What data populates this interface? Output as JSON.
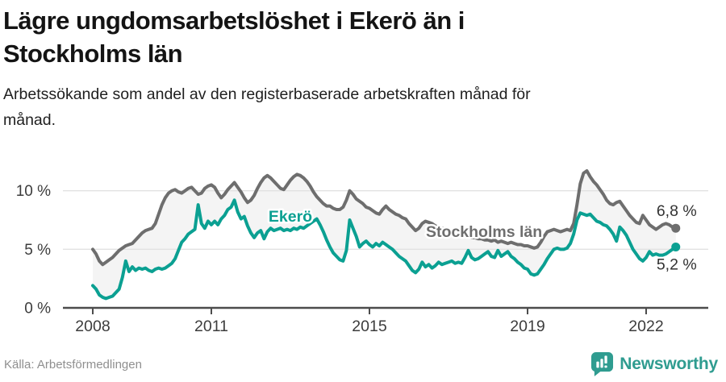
{
  "header": {
    "title_lines": [
      "Lägre ungdomsarbetslöshet i Ekerö än i",
      "Stockholms län"
    ],
    "subtitle_lines": [
      "Arbetssökande som andel av den registerbaserade arbetskraften månad för",
      "månad."
    ]
  },
  "footer": {
    "source": "Källa: Arbetsförmedlingen",
    "brand": "Newsworthy"
  },
  "colors": {
    "accent_teal": "#0ba092",
    "line_gray": "#6e6e6e",
    "axis": "#4c4c4c",
    "tick_label": "#3c3c3c",
    "gridline": "#e2e2e2",
    "fill_between": "#f4f4f4",
    "end_label_text": "#333333"
  },
  "chart_data": {
    "type": "line",
    "x_unit": "month",
    "x_start": "2008-01",
    "x_end": "2022-10",
    "x_ticks": [
      2008,
      2011,
      2015,
      2019,
      2022
    ],
    "y_ticks": [
      {
        "value": 0,
        "label": "0 %"
      },
      {
        "value": 5,
        "label": "5 %"
      },
      {
        "value": 10,
        "label": "10 %"
      }
    ],
    "ylim": [
      0,
      12.3
    ],
    "grid": "horizontal",
    "legend": "inline-labels",
    "series": [
      {
        "name": "Stockholms län",
        "slug": "stockholms-lan",
        "color": "#6e6e6e",
        "end_label": "6,8 %",
        "end_value": 6.8,
        "values": [
          5.0,
          4.6,
          4.0,
          3.7,
          3.9,
          4.1,
          4.3,
          4.6,
          4.9,
          5.1,
          5.3,
          5.4,
          5.5,
          5.8,
          6.1,
          6.4,
          6.6,
          6.7,
          6.8,
          7.2,
          8.0,
          8.8,
          9.4,
          9.8,
          10.0,
          10.1,
          9.9,
          9.8,
          10.0,
          10.2,
          10.3,
          10.0,
          9.7,
          9.8,
          10.2,
          10.4,
          10.5,
          10.3,
          9.8,
          9.4,
          9.7,
          10.1,
          10.4,
          10.7,
          10.3,
          9.9,
          9.4,
          9.0,
          9.2,
          9.6,
          10.2,
          10.7,
          11.1,
          11.3,
          11.1,
          10.8,
          10.5,
          10.2,
          10.1,
          10.5,
          10.9,
          11.2,
          11.4,
          11.3,
          11.1,
          10.8,
          10.4,
          9.9,
          9.5,
          9.2,
          8.9,
          8.7,
          8.7,
          8.5,
          8.4,
          8.4,
          8.6,
          9.2,
          10.0,
          9.7,
          9.3,
          9.1,
          8.9,
          8.6,
          8.5,
          8.3,
          8.1,
          8.0,
          8.4,
          8.7,
          8.4,
          8.2,
          8.0,
          7.9,
          7.7,
          7.6,
          7.2,
          6.9,
          6.6,
          6.8,
          7.2,
          7.4,
          7.3,
          7.2,
          7.0,
          6.9,
          6.8,
          6.7,
          6.6,
          6.5,
          6.4,
          6.3,
          6.2,
          6.2,
          6.1,
          6.0,
          6.0,
          5.9,
          5.9,
          5.8,
          5.8,
          5.7,
          5.8,
          5.6,
          5.7,
          5.6,
          5.5,
          5.6,
          5.5,
          5.4,
          5.4,
          5.3,
          5.3,
          5.2,
          5.1,
          5.2,
          5.6,
          6.1,
          6.5,
          6.6,
          6.7,
          6.6,
          6.5,
          6.6,
          6.7,
          6.6,
          7.2,
          8.8,
          10.6,
          11.5,
          11.7,
          11.2,
          10.8,
          10.5,
          10.1,
          9.7,
          9.2,
          8.9,
          8.8,
          9.0,
          9.1,
          8.7,
          8.3,
          7.9,
          7.6,
          7.3,
          7.2,
          7.9,
          7.5,
          7.1,
          6.9,
          6.7,
          6.9,
          7.1,
          7.2,
          7.1,
          6.9,
          6.8
        ]
      },
      {
        "name": "Ekerö",
        "slug": "ekero",
        "color": "#0ba092",
        "end_label": "5,2 %",
        "end_value": 5.2,
        "values": [
          1.9,
          1.6,
          1.1,
          0.9,
          0.8,
          0.9,
          1.0,
          1.3,
          1.6,
          2.6,
          4.0,
          3.1,
          3.5,
          3.2,
          3.4,
          3.3,
          3.4,
          3.2,
          3.1,
          3.3,
          3.4,
          3.3,
          3.4,
          3.6,
          3.8,
          4.2,
          4.9,
          5.6,
          5.9,
          6.3,
          6.5,
          6.7,
          8.8,
          7.2,
          6.8,
          7.4,
          7.1,
          7.4,
          7.1,
          7.6,
          7.9,
          8.4,
          8.6,
          9.2,
          8.2,
          7.6,
          7.8,
          7.0,
          6.4,
          6.0,
          6.4,
          6.6,
          5.9,
          6.5,
          6.8,
          6.6,
          6.7,
          6.8,
          6.6,
          6.7,
          6.6,
          6.8,
          6.7,
          6.9,
          6.8,
          7.0,
          7.2,
          7.4,
          7.6,
          7.1,
          6.5,
          5.8,
          5.2,
          4.7,
          4.4,
          4.1,
          4.0,
          4.9,
          7.5,
          6.8,
          6.1,
          5.2,
          5.5,
          5.7,
          5.4,
          5.2,
          5.5,
          5.3,
          5.6,
          5.4,
          5.2,
          5.0,
          4.7,
          4.4,
          4.2,
          4.0,
          3.6,
          3.2,
          3.0,
          3.3,
          3.9,
          3.5,
          3.7,
          3.4,
          3.6,
          3.9,
          3.7,
          3.8,
          3.9,
          4.0,
          3.8,
          3.9,
          3.8,
          4.3,
          4.9,
          4.3,
          4.1,
          4.2,
          4.4,
          4.6,
          4.8,
          4.4,
          4.3,
          4.9,
          4.4,
          4.6,
          4.8,
          4.4,
          4.2,
          3.9,
          3.7,
          3.4,
          3.3,
          2.9,
          2.8,
          2.9,
          3.3,
          3.7,
          4.2,
          4.6,
          5.0,
          5.1,
          5.0,
          5.0,
          5.1,
          5.5,
          6.3,
          7.5,
          8.1,
          8.0,
          7.9,
          8.0,
          7.7,
          7.4,
          7.3,
          7.1,
          7.0,
          6.7,
          6.3,
          5.7,
          6.9,
          6.6,
          6.2,
          5.6,
          5.0,
          4.6,
          4.2,
          4.0,
          4.3,
          4.8,
          4.5,
          4.6,
          4.5,
          4.5,
          4.6,
          4.8,
          5.0,
          5.2
        ]
      }
    ],
    "annotations": [
      {
        "text": "Ekerö",
        "x": 2013.0,
        "y": 7.85,
        "color": "#0ba092"
      },
      {
        "text": "Stockholms län",
        "x": 2017.9,
        "y": 6.55,
        "color": "#6e6e6e"
      }
    ]
  }
}
